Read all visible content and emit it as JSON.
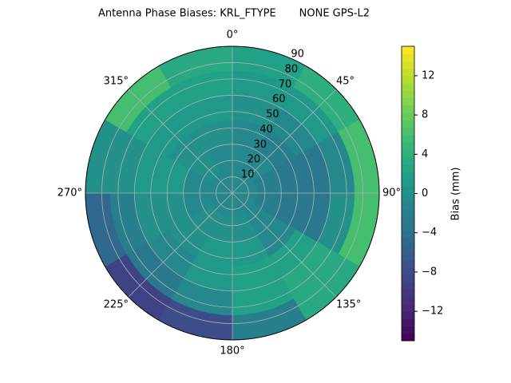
{
  "chart_data": {
    "type": "polar-contour",
    "title": "Antenna Phase Biases: KRL_FTYPE       NONE GPS-L2",
    "colorbar_label": "Bias (mm)",
    "colormap": "viridis",
    "theta_edges": [
      0,
      30,
      60,
      90,
      120,
      150,
      180,
      210,
      240,
      270,
      300,
      330,
      360
    ],
    "r_edges": [
      0,
      15,
      30,
      45,
      60,
      75,
      90
    ],
    "z": [
      [
        -1,
        -1,
        -1,
        -1,
        -1,
        -1,
        -1,
        -1,
        -1,
        -1,
        -1,
        -1
      ],
      [
        -1,
        -1,
        -2,
        -2,
        -1,
        0,
        0,
        0,
        -1,
        -1,
        0,
        -1
      ],
      [
        -1,
        -2,
        -3,
        -3,
        -1,
        1,
        1,
        0,
        0,
        1,
        0,
        0
      ],
      [
        0,
        -1,
        -3,
        -3,
        2,
        2,
        1,
        -1,
        0,
        1,
        1,
        1
      ],
      [
        1,
        1,
        -1,
        0,
        3,
        2,
        -1,
        -3,
        -2,
        0,
        2,
        2
      ],
      [
        2,
        4,
        6,
        6,
        3,
        -2,
        -8,
        -9,
        -5,
        0,
        6,
        3
      ]
    ],
    "rlim": [
      0,
      90
    ],
    "rticks": [
      10,
      20,
      30,
      40,
      50,
      60,
      70,
      80,
      90
    ],
    "thetaticks": [
      {
        "value": 0,
        "label": "0°"
      },
      {
        "value": 45,
        "label": "45°"
      },
      {
        "value": 90,
        "label": "90°"
      },
      {
        "value": 135,
        "label": "135°"
      },
      {
        "value": 180,
        "label": "180°"
      },
      {
        "value": 225,
        "label": "225°"
      },
      {
        "value": 270,
        "label": "270°"
      },
      {
        "value": 315,
        "label": "315°"
      }
    ],
    "zlim": [
      -15,
      15
    ],
    "zticks": [
      {
        "value": -12,
        "label": "−12"
      },
      {
        "value": -8,
        "label": "−8"
      },
      {
        "value": -4,
        "label": "−4"
      },
      0,
      4,
      8,
      12
    ],
    "grid": true
  }
}
